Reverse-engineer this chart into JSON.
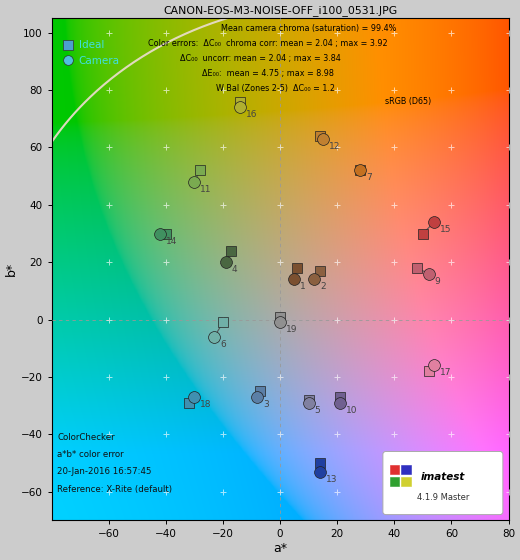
{
  "title": "CANON-EOS-M3-NOISE-OFF_i100_0531.JPG",
  "xlabel": "a*",
  "ylabel": "b*",
  "xlim": [
    -80,
    80
  ],
  "ylim": [
    -70,
    105
  ],
  "bg_color": "#cccccc",
  "annotation_lines": [
    "Mean camera chroma (saturation) = 99.4%",
    "Color errors:  ΔC₀₀  chroma corr: mean = 2.04 ; max = 3.92",
    "ΔC₀₀  uncorr: mean = 2.04 ; max = 3.84",
    "ΔE₀₀:  mean = 4.75 ; max = 8.98",
    "W Bal (Zones 2-5)  ΔC₀₀ = 1.2",
    "sRGB (D65)"
  ],
  "bottom_left_text": [
    "ColorChecker",
    "a*b* color error",
    "20-Jan-2016 16:57:45",
    "Reference: X-Rite (default)"
  ],
  "patches": [
    {
      "num": 1,
      "ideal_a": 6,
      "ideal_b": 18,
      "cam_a": 5,
      "cam_b": 14,
      "color": "#7B5030"
    },
    {
      "num": 2,
      "ideal_a": 14,
      "ideal_b": 17,
      "cam_a": 12,
      "cam_b": 14,
      "color": "#8B6040"
    },
    {
      "num": 3,
      "ideal_a": -7,
      "ideal_b": -25,
      "cam_a": -8,
      "cam_b": -27,
      "color": "#5B7FA6"
    },
    {
      "num": 4,
      "ideal_a": -17,
      "ideal_b": 24,
      "cam_a": -19,
      "cam_b": 20,
      "color": "#4A6741"
    },
    {
      "num": 5,
      "ideal_a": 10,
      "ideal_b": -28,
      "cam_a": 10,
      "cam_b": -29,
      "color": "#8080A0"
    },
    {
      "num": 6,
      "ideal_a": -20,
      "ideal_b": -1,
      "cam_a": -23,
      "cam_b": -6,
      "color": "#70B0A8"
    },
    {
      "num": 7,
      "ideal_a": 28,
      "ideal_b": 52,
      "cam_a": 28,
      "cam_b": 52,
      "color": "#C47020"
    },
    {
      "num": 9,
      "ideal_a": 48,
      "ideal_b": 18,
      "cam_a": 52,
      "cam_b": 16,
      "color": "#C06070"
    },
    {
      "num": 10,
      "ideal_a": 21,
      "ideal_b": -27,
      "cam_a": 21,
      "cam_b": -29,
      "color": "#706090"
    },
    {
      "num": 11,
      "ideal_a": -28,
      "ideal_b": 52,
      "cam_a": -30,
      "cam_b": 48,
      "color": "#7AAA50"
    },
    {
      "num": 12,
      "ideal_a": 14,
      "ideal_b": 64,
      "cam_a": 15,
      "cam_b": 63,
      "color": "#C08030"
    },
    {
      "num": 13,
      "ideal_a": 14,
      "ideal_b": -50,
      "cam_a": 14,
      "cam_b": -53,
      "color": "#2040A0"
    },
    {
      "num": 14,
      "ideal_a": -40,
      "ideal_b": 30,
      "cam_a": -42,
      "cam_b": 30,
      "color": "#409060"
    },
    {
      "num": 15,
      "ideal_a": 50,
      "ideal_b": 30,
      "cam_a": 54,
      "cam_b": 34,
      "color": "#C04040"
    },
    {
      "num": 16,
      "ideal_a": -14,
      "ideal_b": 76,
      "cam_a": -14,
      "cam_b": 74,
      "color": "#B0B030"
    },
    {
      "num": 17,
      "ideal_a": 52,
      "ideal_b": -18,
      "cam_a": 54,
      "cam_b": -16,
      "color": "#E080A0"
    },
    {
      "num": 18,
      "ideal_a": -32,
      "ideal_b": -29,
      "cam_a": -30,
      "cam_b": -27,
      "color": "#4090B0"
    },
    {
      "num": 19,
      "ideal_a": 0,
      "ideal_b": 1,
      "cam_a": 0,
      "cam_b": -1,
      "color": "#909090"
    }
  ],
  "legend_ideal_color": "#4C9FD0",
  "legend_cam_color": "#50BFDF",
  "legend_label_color": "#40DFDF",
  "grid_color": "#ffffff",
  "zero_line_color": "#999999",
  "srGB_curve_color": "#E8DCC8",
  "imatest_box_colors": [
    "#E03030",
    "#3030C0",
    "#30A030",
    "#D0D030"
  ]
}
